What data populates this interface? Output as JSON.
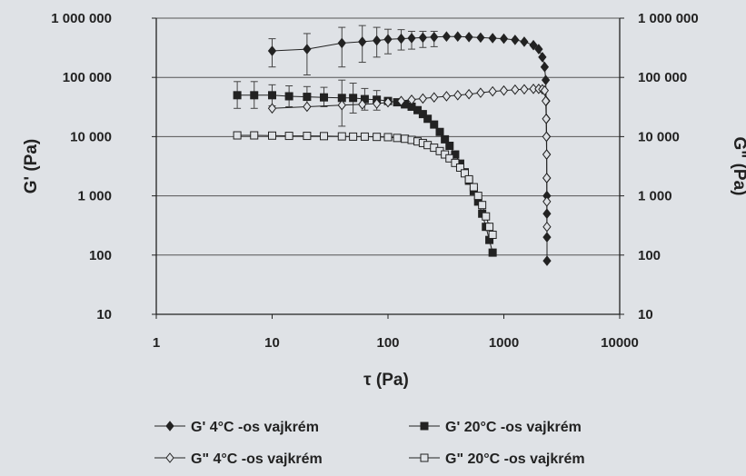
{
  "colors": {
    "background": "#dfe2e6",
    "ink": "#222222",
    "grid": "#555555"
  },
  "chart_data": {
    "type": "scatter",
    "title": "",
    "xlabel": "τ (Pa)",
    "ylabel_left": "G' (Pa)",
    "ylabel_right": "G\" (Pa)",
    "x_scale": "log",
    "y_scale": "log",
    "xlim": [
      1,
      10000
    ],
    "ylim": [
      10,
      1000000
    ],
    "grid": "horizontal",
    "legend_position": "bottom",
    "x_ticks": [
      "1",
      "10",
      "100",
      "1000",
      "10000"
    ],
    "y_ticks_left": [
      "10",
      "100",
      "1 000",
      "10 000",
      "100 000",
      "1 000 000"
    ],
    "y_ticks_right": [
      "10",
      "100",
      "1 000",
      "10 000",
      "100 000",
      "1 000 000"
    ],
    "series": [
      {
        "name": "G' 4°C -os vajkrém",
        "marker": "filled-diamond",
        "points": [
          [
            10,
            280000
          ],
          [
            20,
            300000
          ],
          [
            40,
            380000
          ],
          [
            60,
            400000
          ],
          [
            80,
            420000
          ],
          [
            100,
            440000
          ],
          [
            130,
            450000
          ],
          [
            160,
            460000
          ],
          [
            200,
            470000
          ],
          [
            250,
            480000
          ],
          [
            320,
            490000
          ],
          [
            400,
            490000
          ],
          [
            500,
            480000
          ],
          [
            630,
            470000
          ],
          [
            800,
            460000
          ],
          [
            1000,
            450000
          ],
          [
            1250,
            430000
          ],
          [
            1500,
            400000
          ],
          [
            1800,
            350000
          ],
          [
            2000,
            300000
          ],
          [
            2150,
            220000
          ],
          [
            2250,
            150000
          ],
          [
            2300,
            90000
          ],
          [
            2320,
            40000
          ],
          [
            2330,
            20000
          ],
          [
            2340,
            10000
          ],
          [
            2345,
            5000
          ],
          [
            2350,
            2000
          ],
          [
            2352,
            1000
          ],
          [
            2354,
            500
          ],
          [
            2356,
            200
          ],
          [
            2358,
            80
          ]
        ],
        "error_y": [
          [
            10,
            150000,
            450000
          ],
          [
            20,
            110000,
            550000
          ],
          [
            40,
            150000,
            700000
          ],
          [
            60,
            180000,
            750000
          ],
          [
            80,
            220000,
            700000
          ],
          [
            100,
            250000,
            650000
          ],
          [
            130,
            290000,
            640000
          ],
          [
            160,
            300000,
            600000
          ],
          [
            200,
            320000,
            600000
          ],
          [
            250,
            330000,
            600000
          ]
        ]
      },
      {
        "name": "G' 20°C -os vajkrém",
        "marker": "filled-square",
        "points": [
          [
            5,
            50000
          ],
          [
            7,
            50000
          ],
          [
            10,
            50000
          ],
          [
            14,
            48000
          ],
          [
            20,
            47000
          ],
          [
            28,
            46000
          ],
          [
            40,
            45000
          ],
          [
            50,
            45000
          ],
          [
            63,
            43000
          ],
          [
            80,
            42000
          ],
          [
            100,
            40000
          ],
          [
            120,
            38000
          ],
          [
            140,
            35000
          ],
          [
            160,
            32000
          ],
          [
            180,
            28000
          ],
          [
            200,
            24000
          ],
          [
            220,
            20000
          ],
          [
            250,
            16000
          ],
          [
            280,
            12000
          ],
          [
            310,
            9000
          ],
          [
            340,
            7000
          ],
          [
            380,
            5000
          ],
          [
            420,
            3500
          ],
          [
            460,
            2500
          ],
          [
            500,
            1800
          ],
          [
            550,
            1200
          ],
          [
            600,
            800
          ],
          [
            650,
            500
          ],
          [
            700,
            300
          ],
          [
            750,
            180
          ],
          [
            800,
            110
          ]
        ],
        "error_y": [
          [
            5,
            30000,
            85000
          ],
          [
            7,
            30000,
            85000
          ],
          [
            10,
            33000,
            75000
          ],
          [
            14,
            32000,
            72000
          ],
          [
            20,
            32000,
            70000
          ],
          [
            28,
            32000,
            68000
          ],
          [
            40,
            15000,
            90000
          ],
          [
            50,
            25000,
            80000
          ],
          [
            63,
            28000,
            65000
          ],
          [
            80,
            28000,
            60000
          ]
        ]
      },
      {
        "name": "G\" 4°C -os vajkrém",
        "marker": "open-diamond",
        "points": [
          [
            10,
            30000
          ],
          [
            20,
            32000
          ],
          [
            40,
            34000
          ],
          [
            60,
            35000
          ],
          [
            80,
            36000
          ],
          [
            100,
            38000
          ],
          [
            130,
            40000
          ],
          [
            160,
            42000
          ],
          [
            200,
            44000
          ],
          [
            250,
            46000
          ],
          [
            320,
            48000
          ],
          [
            400,
            50000
          ],
          [
            500,
            52000
          ],
          [
            630,
            55000
          ],
          [
            800,
            58000
          ],
          [
            1000,
            60000
          ],
          [
            1250,
            62000
          ],
          [
            1500,
            63000
          ],
          [
            1800,
            64000
          ],
          [
            2000,
            64000
          ],
          [
            2150,
            63000
          ],
          [
            2250,
            60000
          ],
          [
            2300,
            40000
          ],
          [
            2320,
            20000
          ],
          [
            2330,
            10000
          ],
          [
            2340,
            5000
          ],
          [
            2345,
            2000
          ],
          [
            2350,
            800
          ],
          [
            2355,
            300
          ]
        ]
      },
      {
        "name": "G\" 20°C -os vajkrém",
        "marker": "open-square",
        "points": [
          [
            5,
            10500
          ],
          [
            7,
            10500
          ],
          [
            10,
            10400
          ],
          [
            14,
            10300
          ],
          [
            20,
            10300
          ],
          [
            28,
            10200
          ],
          [
            40,
            10100
          ],
          [
            50,
            10000
          ],
          [
            63,
            10000
          ],
          [
            80,
            9900
          ],
          [
            100,
            9800
          ],
          [
            120,
            9500
          ],
          [
            140,
            9200
          ],
          [
            160,
            8800
          ],
          [
            180,
            8300
          ],
          [
            200,
            7800
          ],
          [
            220,
            7200
          ],
          [
            250,
            6500
          ],
          [
            280,
            5700
          ],
          [
            310,
            5000
          ],
          [
            340,
            4300
          ],
          [
            380,
            3600
          ],
          [
            420,
            3000
          ],
          [
            460,
            2400
          ],
          [
            500,
            1900
          ],
          [
            550,
            1400
          ],
          [
            600,
            1000
          ],
          [
            650,
            700
          ],
          [
            700,
            450
          ],
          [
            750,
            300
          ],
          [
            800,
            220
          ]
        ]
      }
    ]
  }
}
